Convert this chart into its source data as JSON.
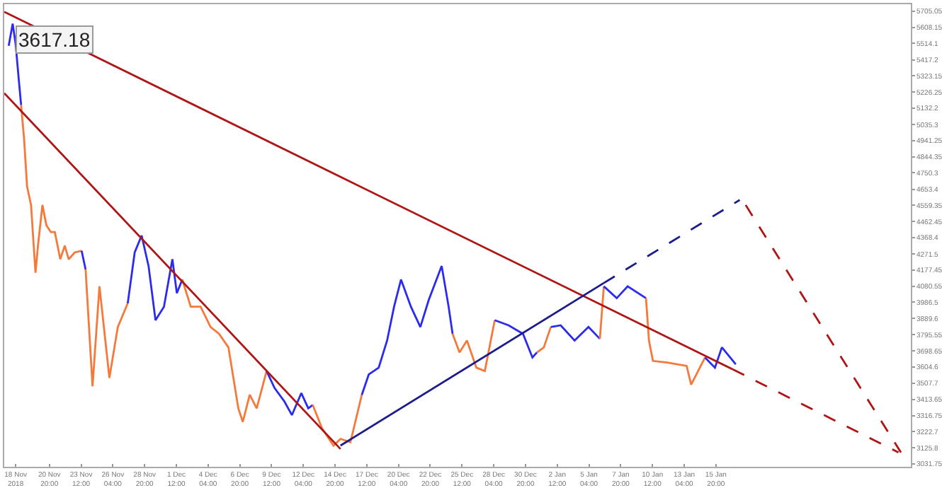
{
  "chart_data": {
    "type": "line",
    "annotations": [
      "3617.18"
    ],
    "xlim": [
      "2018-11-17T01:00",
      "2019-02-01T05:00"
    ],
    "xticks": [
      {
        "value": "2018-11-18T00:00",
        "label": "18 Nov 2018"
      },
      {
        "value": "2018-11-20T20:00",
        "label": "20 Nov 20:00"
      },
      {
        "value": "2018-11-23T12:00",
        "label": "23 Nov 12:00"
      },
      {
        "value": "2018-11-26T04:00",
        "label": "26 Nov 04:00"
      },
      {
        "value": "2018-11-28T20:00",
        "label": "28 Nov 20:00"
      },
      {
        "value": "2018-12-01T12:00",
        "label": "1 Dec 12:00"
      },
      {
        "value": "2018-12-04T04:00",
        "label": "4 Dec 04:00"
      },
      {
        "value": "2018-12-06T20:00",
        "label": "6 Dec 20:00"
      },
      {
        "value": "2018-12-09T12:00",
        "label": "9 Dec 12:00"
      },
      {
        "value": "2018-12-12T04:00",
        "label": "12 Dec 04:00"
      },
      {
        "value": "2018-12-14T20:00",
        "label": "14 Dec 20:00"
      },
      {
        "value": "2018-12-17T12:00",
        "label": "17 Dec 12:00"
      },
      {
        "value": "2018-12-20T04:00",
        "label": "20 Dec 04:00"
      },
      {
        "value": "2018-12-22T20:00",
        "label": "22 Dec 20:00"
      },
      {
        "value": "2018-12-25T12:00",
        "label": "25 Dec 12:00"
      },
      {
        "value": "2018-12-28T04:00",
        "label": "28 Dec 04:00"
      },
      {
        "value": "2018-12-30T20:00",
        "label": "30 Dec 20:00"
      },
      {
        "value": "2019-01-02T12:00",
        "label": "2 Jan 12:00"
      },
      {
        "value": "2019-01-05T04:00",
        "label": "5 Jan 04:00"
      },
      {
        "value": "2019-01-07T20:00",
        "label": "7 Jan 20:00"
      },
      {
        "value": "2019-01-10T12:00",
        "label": "10 Jan 12:00"
      },
      {
        "value": "2019-01-13T04:00",
        "label": "13 Jan 04:00"
      },
      {
        "value": "2019-01-15T20:00",
        "label": "15 Jan 20:00"
      }
    ],
    "ylim": [
      3015,
      5745
    ],
    "yticks": [
      3031.75,
      3125.8,
      3222.7,
      3316.75,
      3413.65,
      3507.7,
      3604.6,
      3698.65,
      3795.55,
      3889.6,
      3986.5,
      4080.55,
      4177.45,
      4271.5,
      4368.4,
      4462.45,
      4559.35,
      4653.4,
      4750.3,
      4844.35,
      4941.25,
      5035.3,
      5132.2,
      5226.25,
      5323.15,
      5417.2,
      5514.1,
      5608.15,
      5705.05
    ],
    "grid": false,
    "series": [
      {
        "color": "#2b2bf0",
        "x": [
          "2018-11-17T10:00",
          "2018-11-17T18:00",
          "2018-11-18T00:00",
          "2018-11-18T06:00",
          "2018-11-18T11:00"
        ],
        "values": [
          5500,
          5630,
          5510,
          5310,
          5150
        ]
      },
      {
        "color": "#f5793b",
        "x": [
          "2018-11-18T11:00",
          "2018-11-18T17:00",
          "2018-11-18T23:00",
          "2018-11-19T07:00",
          "2018-11-19T16:00",
          "2018-11-19T21:00",
          "2018-11-20T06:00",
          "2018-11-20T14:00",
          "2018-11-20T23:00",
          "2018-11-21T07:00",
          "2018-11-21T18:00",
          "2018-11-22T03:00",
          "2018-11-22T11:00",
          "2018-11-22T23:00",
          "2018-11-23T13:00"
        ],
        "values": [
          5150,
          4950,
          4670,
          4560,
          4160,
          4320,
          4560,
          4440,
          4400,
          4400,
          4240,
          4320,
          4240,
          4280,
          4290
        ]
      },
      {
        "color": "#2b2bf0",
        "x": [
          "2018-11-23T13:00",
          "2018-11-23T21:00"
        ],
        "values": [
          4290,
          4180
        ]
      },
      {
        "color": "#f5793b",
        "x": [
          "2018-11-23T21:00",
          "2018-11-24T11:00",
          "2018-11-25T01:00",
          "2018-11-25T21:00",
          "2018-11-26T14:00",
          "2018-11-27T10:00"
        ],
        "values": [
          4180,
          3490,
          4080,
          3540,
          3840,
          3980
        ]
      },
      {
        "color": "#2b2bf0",
        "x": [
          "2018-11-27T10:00",
          "2018-11-28T00:00",
          "2018-11-28T14:00",
          "2018-11-29T04:00",
          "2018-11-29T18:00",
          "2018-11-30T11:00",
          "2018-12-01T04:00",
          "2018-12-01T13:00",
          "2018-12-02T00:00"
        ],
        "values": [
          3980,
          4280,
          4380,
          4200,
          3880,
          3960,
          4240,
          4040,
          4120
        ]
      },
      {
        "color": "#f5793b",
        "x": [
          "2018-12-02T00:00",
          "2018-12-02T17:00",
          "2018-12-03T13:00",
          "2018-12-04T09:00",
          "2018-12-05T02:00",
          "2018-12-05T21:00",
          "2018-12-06T17:00",
          "2018-12-07T02:00",
          "2018-12-07T16:00",
          "2018-12-08T06:00",
          "2018-12-09T02:00"
        ],
        "values": [
          4120,
          3960,
          3960,
          3840,
          3800,
          3720,
          3360,
          3280,
          3440,
          3360,
          3580
        ]
      },
      {
        "color": "#2b2bf0",
        "x": [
          "2018-12-09T02:00",
          "2018-12-09T18:00",
          "2018-12-10T14:00",
          "2018-12-11T05:00",
          "2018-12-12T00:00",
          "2018-12-12T14:00",
          "2018-12-12T23:00"
        ],
        "values": [
          3580,
          3480,
          3400,
          3320,
          3450,
          3360,
          3380
        ]
      },
      {
        "color": "#f5793b",
        "x": [
          "2018-12-12T23:00",
          "2018-12-13T18:00",
          "2018-12-14T17:00",
          "2018-12-15T07:00",
          "2018-12-16T03:00",
          "2018-12-17T02:00"
        ],
        "values": [
          3380,
          3240,
          3140,
          3180,
          3160,
          3440
        ]
      },
      {
        "color": "#2b2bf0",
        "x": [
          "2018-12-17T02:00",
          "2018-12-17T16:00",
          "2018-12-18T12:00",
          "2018-12-19T05:00",
          "2018-12-19T19:00",
          "2018-12-20T09:00",
          "2018-12-21T05:00",
          "2018-12-22T00:00",
          "2018-12-22T17:00",
          "2018-12-23T19:00",
          "2018-12-24T09:00",
          "2018-12-24T17:00"
        ],
        "values": [
          3440,
          3560,
          3600,
          3760,
          3960,
          4120,
          3960,
          3840,
          4000,
          4200,
          3960,
          3800
        ]
      },
      {
        "color": "#f5793b",
        "x": [
          "2018-12-24T17:00",
          "2018-12-25T07:00",
          "2018-12-25T22:00",
          "2018-12-26T17:00",
          "2018-12-27T10:00",
          "2018-12-28T06:00"
        ],
        "values": [
          3800,
          3690,
          3760,
          3600,
          3580,
          3880
        ]
      },
      {
        "color": "#2b2bf0",
        "x": [
          "2018-12-28T06:00",
          "2018-12-29T10:00",
          "2018-12-30T15:00",
          "2018-12-31T10:00",
          "2018-12-31T19:00"
        ],
        "values": [
          3880,
          3850,
          3800,
          3660,
          3690
        ]
      },
      {
        "color": "#f5793b",
        "x": [
          "2018-12-31T19:00",
          "2019-01-01T09:00",
          "2019-01-01T23:00"
        ],
        "values": [
          3690,
          3720,
          3840
        ]
      },
      {
        "color": "#2b2bf0",
        "x": [
          "2019-01-01T23:00",
          "2019-01-02T19:00",
          "2019-01-03T23:00",
          "2019-01-05T03:00",
          "2019-01-06T02:00"
        ],
        "values": [
          3840,
          3850,
          3760,
          3840,
          3770
        ]
      },
      {
        "color": "#f5793b",
        "x": [
          "2019-01-06T02:00",
          "2019-01-06T10:00"
        ],
        "values": [
          3770,
          4080
        ]
      },
      {
        "color": "#2b2bf0",
        "x": [
          "2019-01-06T10:00",
          "2019-01-07T12:00",
          "2019-01-08T10:00",
          "2019-01-09T23:00"
        ],
        "values": [
          4080,
          4010,
          4080,
          4010
        ]
      },
      {
        "color": "#f5793b",
        "x": [
          "2019-01-09T23:00",
          "2019-01-10T05:00",
          "2019-01-10T13:00",
          "2019-01-11T18:00",
          "2019-01-13T09:00",
          "2019-01-13T18:00",
          "2019-01-14T22:00"
        ],
        "values": [
          4010,
          3760,
          3640,
          3630,
          3610,
          3500,
          3660
        ]
      },
      {
        "color": "#2b2bf0",
        "x": [
          "2019-01-14T22:00",
          "2019-01-15T18:00",
          "2019-01-16T08:00",
          "2019-01-17T12:00"
        ],
        "values": [
          3660,
          3600,
          3720,
          3620
        ]
      },
      {
        "color": "#b01515",
        "line_style": "solid",
        "x": [
          "2018-11-17T01:00",
          "2019-01-17T06:00"
        ],
        "values": [
          5700,
          3590
        ]
      },
      {
        "color": "#b01515",
        "line_style": "dashed",
        "x": [
          "2019-01-17T06:00",
          "2019-01-31T04:00"
        ],
        "values": [
          3590,
          3100
        ]
      },
      {
        "color": "#b01515",
        "line_style": "solid",
        "x": [
          "2018-11-17T01:00",
          "2018-12-15T07:00"
        ],
        "values": [
          5220,
          3120
        ]
      },
      {
        "color": "#1c1c8c",
        "line_style": "solid",
        "x": [
          "2018-12-15T07:00",
          "2019-01-06T10:00"
        ],
        "values": [
          3140,
          4100
        ]
      },
      {
        "color": "#1c1c8c",
        "line_style": "dashed",
        "x": [
          "2019-01-06T10:00",
          "2019-01-17T20:00"
        ],
        "values": [
          4100,
          4590
        ]
      },
      {
        "color": "#b01515",
        "line_style": "dashed",
        "x": [
          "2019-01-18T08:00",
          "2019-01-31T09:00"
        ],
        "values": [
          4560,
          3100
        ]
      }
    ]
  }
}
